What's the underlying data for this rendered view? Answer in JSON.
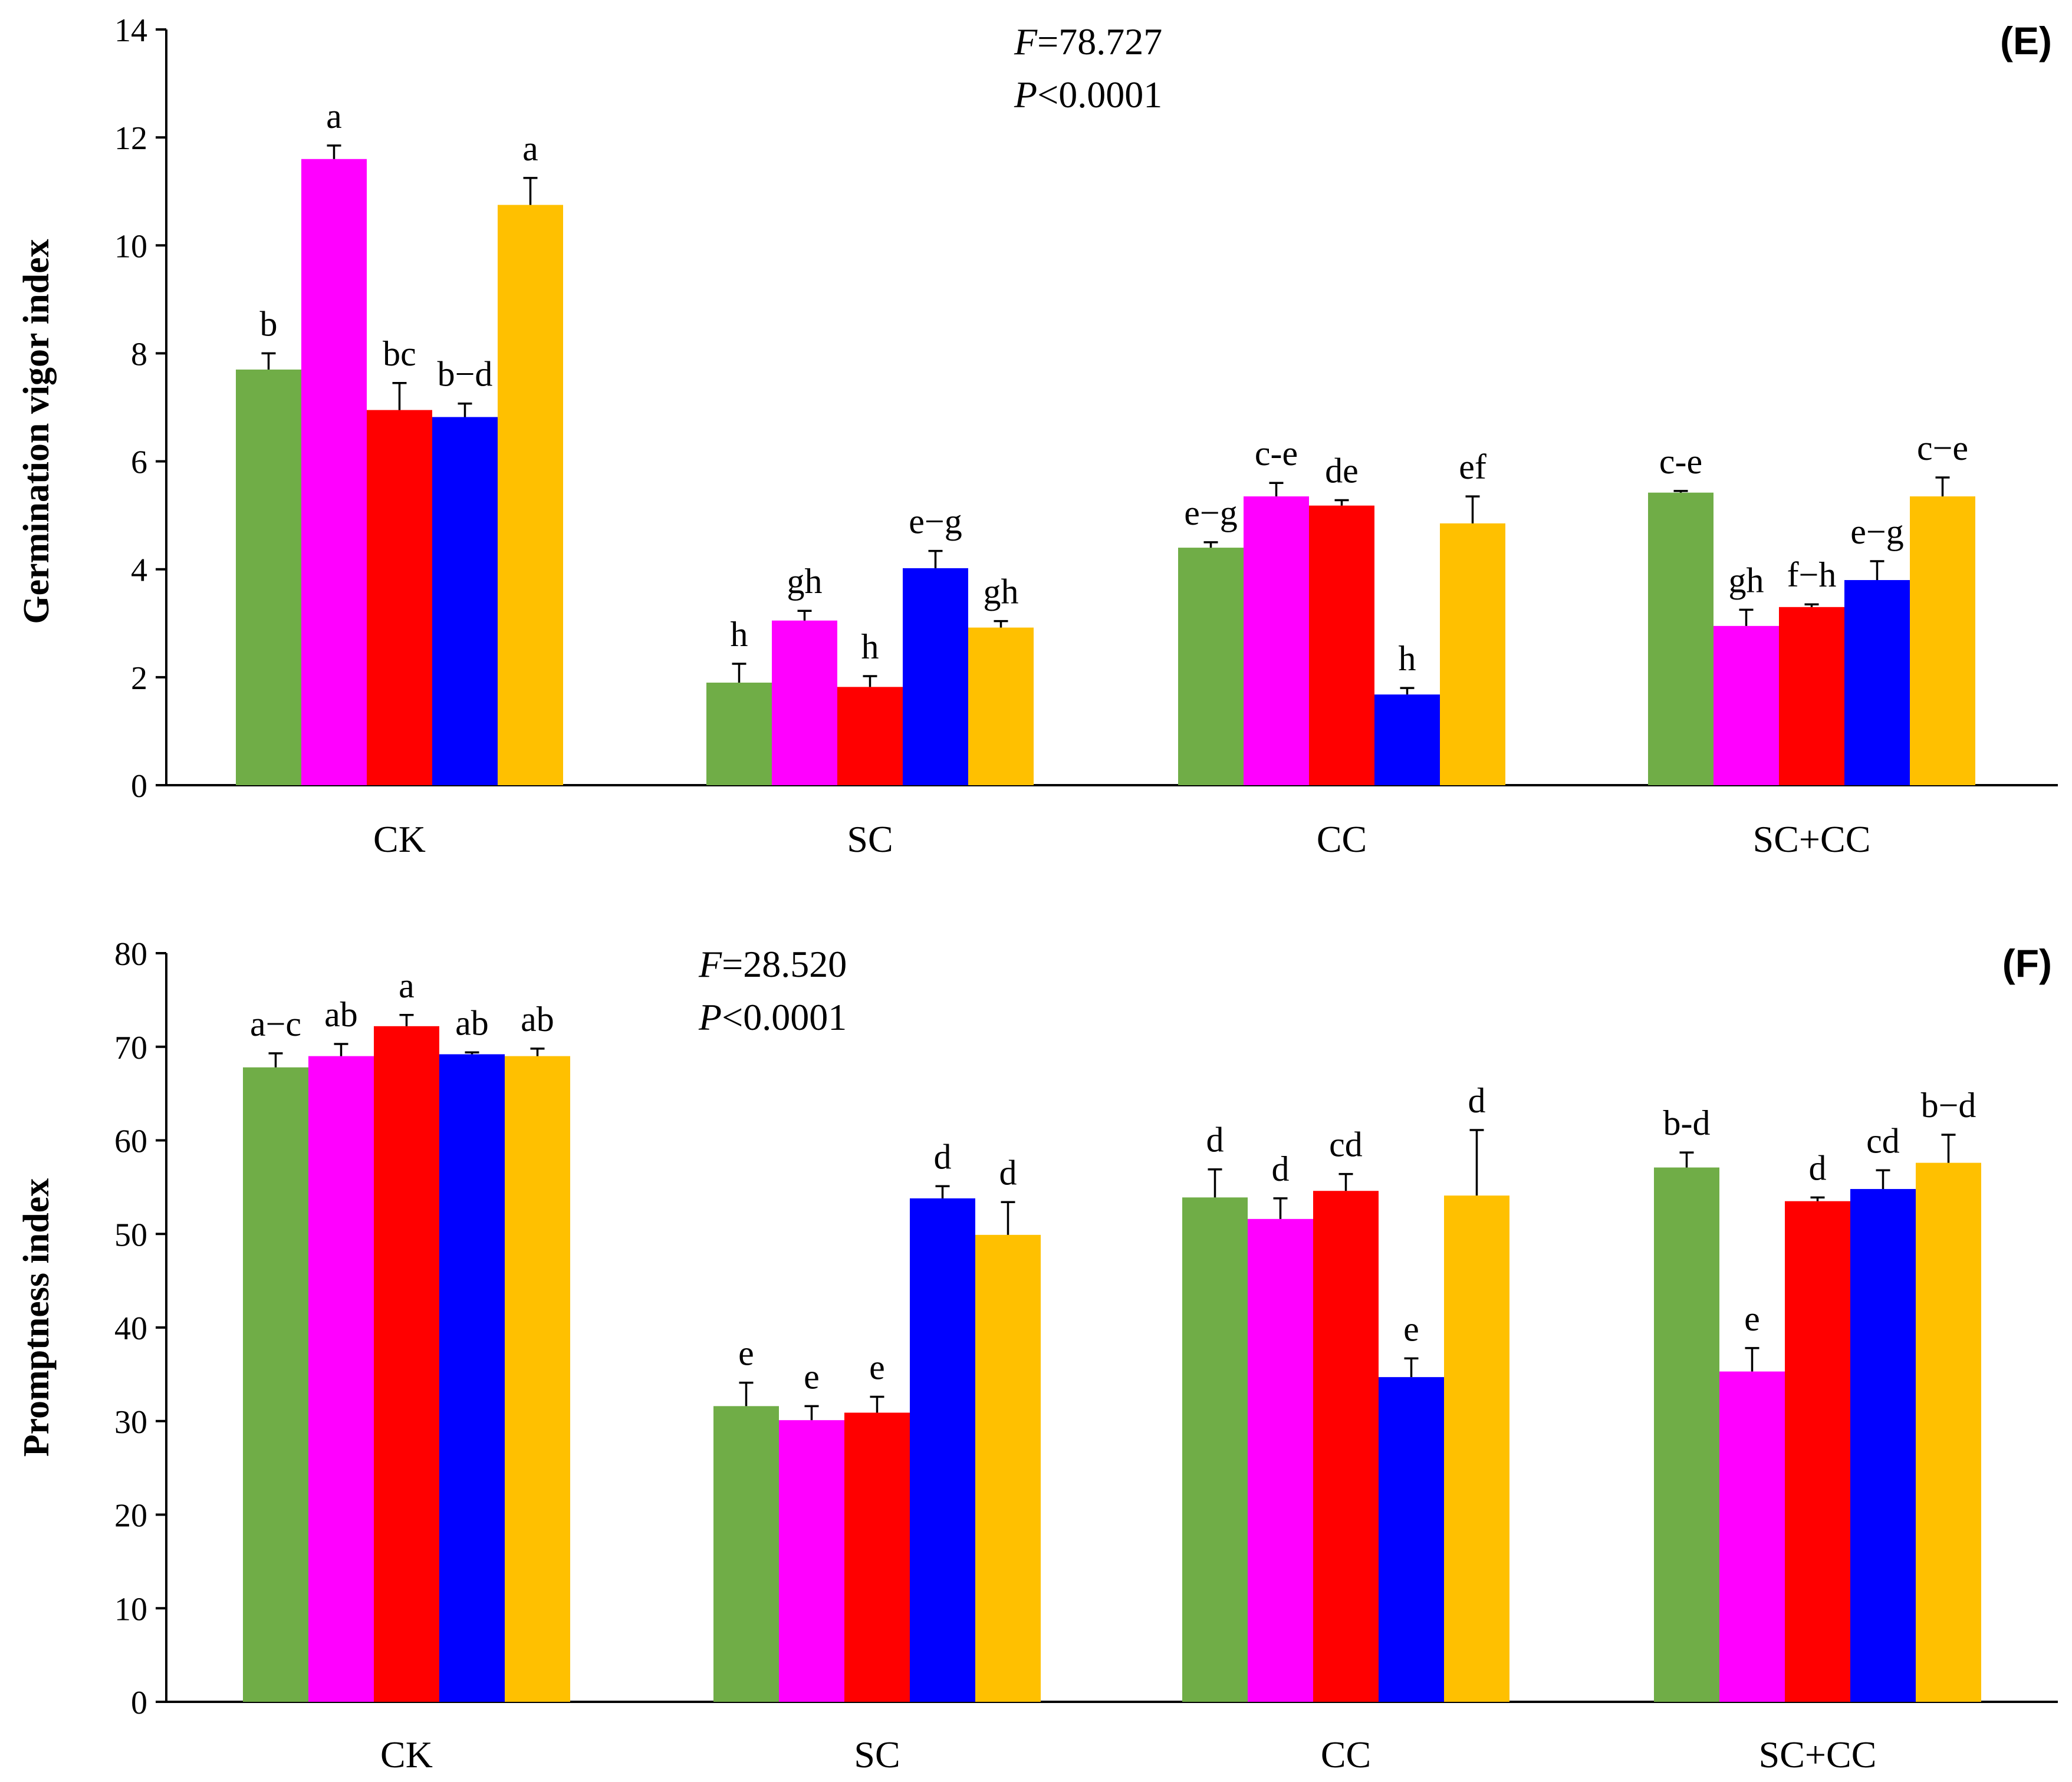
{
  "colors": [
    "#70AD47",
    "#FF00FF",
    "#FF0000",
    "#0000FF",
    "#FFC000"
  ],
  "chart_data": [
    {
      "type": "bar",
      "panel": "(E)",
      "ylabel": "Germination vigor index",
      "ylim": [
        0,
        14
      ],
      "yticks": [
        0,
        2,
        4,
        6,
        8,
        10,
        12,
        14
      ],
      "categories": [
        "CK",
        "SC",
        "CC",
        "SC+CC"
      ],
      "stat_f_letter": "F",
      "stat_f_value": "=78.727",
      "stat_p_letter": "P",
      "stat_p_value": "<0.0001",
      "values": [
        [
          7.7,
          11.6,
          6.95,
          6.82,
          10.75
        ],
        [
          1.9,
          3.05,
          1.82,
          4.02,
          2.92
        ],
        [
          4.4,
          5.35,
          5.18,
          1.68,
          4.85
        ],
        [
          5.42,
          2.95,
          3.3,
          3.8,
          5.35
        ]
      ],
      "errors": [
        [
          0.3,
          0.25,
          0.5,
          0.25,
          0.5
        ],
        [
          0.35,
          0.18,
          0.2,
          0.32,
          0.12
        ],
        [
          0.1,
          0.25,
          0.1,
          0.12,
          0.5
        ],
        [
          0.03,
          0.3,
          0.05,
          0.35,
          0.35
        ]
      ],
      "sig_letters": [
        [
          "b",
          "a",
          "bc",
          "b−d",
          "a"
        ],
        [
          "h",
          "gh",
          "h",
          "e−g",
          "gh"
        ],
        [
          "e−g",
          "c-e",
          "de",
          "h",
          "ef"
        ],
        [
          "c-e",
          "gh",
          "f−h",
          "e−g",
          "c−e"
        ]
      ]
    },
    {
      "type": "bar",
      "panel": "(F)",
      "ylabel": "Promptness index",
      "ylim": [
        0,
        80
      ],
      "yticks": [
        0,
        10,
        20,
        30,
        40,
        50,
        60,
        70,
        80
      ],
      "categories": [
        "CK",
        "SC",
        "CC",
        "SC+CC"
      ],
      "stat_f_letter": "F",
      "stat_f_value": "=28.520",
      "stat_p_letter": "P",
      "stat_p_value": "<0.0001",
      "values": [
        [
          67.8,
          69.0,
          72.2,
          69.2,
          69.0
        ],
        [
          31.6,
          30.1,
          30.9,
          53.8,
          49.9
        ],
        [
          53.9,
          51.6,
          54.6,
          34.7,
          54.1
        ],
        [
          57.1,
          35.3,
          53.5,
          54.8,
          57.6
        ]
      ],
      "errors": [
        [
          1.5,
          1.3,
          1.2,
          0.2,
          0.8
        ],
        [
          2.5,
          1.5,
          1.7,
          1.3,
          3.5
        ],
        [
          3.0,
          2.2,
          1.8,
          2.0,
          7.0
        ],
        [
          1.6,
          2.5,
          0.4,
          2.0,
          3.0
        ]
      ],
      "sig_letters": [
        [
          "a−c",
          "ab",
          "a",
          "ab",
          "ab"
        ],
        [
          "e",
          "e",
          "e",
          "d",
          "d"
        ],
        [
          "d",
          "d",
          "cd",
          "e",
          "d"
        ],
        [
          "b-d",
          "e",
          "d",
          "cd",
          "b−d"
        ]
      ]
    }
  ]
}
